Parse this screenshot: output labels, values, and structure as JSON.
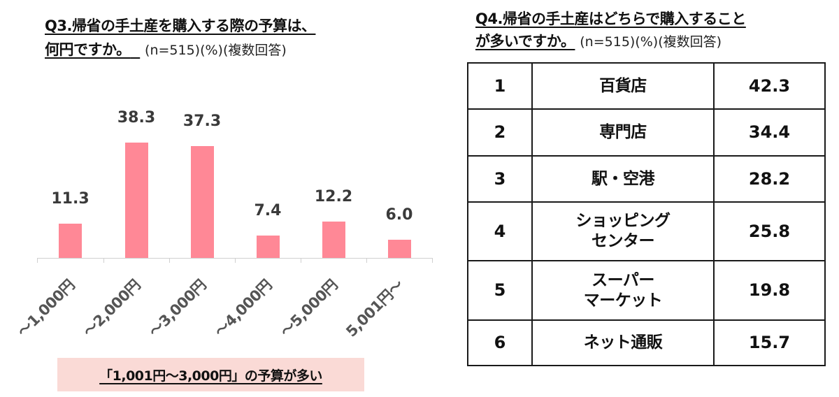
{
  "q3": {
    "title_line1": "Q3.帰省の手土産を購入する際の予算は、",
    "title_line2": "何円ですか。",
    "meta": "(n=515)(%)(複数回答)",
    "highlight": "「1,001円〜3,000円」の予算が多い"
  },
  "q4": {
    "title_line1": "Q4.帰省の手土産はどちらで購入すること",
    "title_line2": "が多いですか。",
    "meta": "(n=515)(%)(複数回答)",
    "rows": [
      {
        "rank": "1",
        "name_lines": [
          "百貨店"
        ],
        "value": "42.3"
      },
      {
        "rank": "2",
        "name_lines": [
          "専門店"
        ],
        "value": "34.4"
      },
      {
        "rank": "3",
        "name_lines": [
          "駅・空港"
        ],
        "value": "28.2"
      },
      {
        "rank": "4",
        "name_lines": [
          "ショッピング",
          "センター"
        ],
        "value": "25.8"
      },
      {
        "rank": "5",
        "name_lines": [
          "スーパー",
          "マーケット"
        ],
        "value": "19.8"
      },
      {
        "rank": "6",
        "name_lines": [
          "ネット通販"
        ],
        "value": "15.7"
      }
    ]
  },
  "colors": {
    "bar": "#ff8896",
    "highlight_bg": "#fadad6",
    "value_label": "#3a3a3a",
    "axis_label": "#555555",
    "table_border": "#1a1a1a"
  },
  "chart_data": [
    {
      "type": "bar",
      "title": "Q3.帰省の手土産を購入する際の予算は、何円ですか。(n=515)(%)(複数回答)",
      "categories": [
        "〜1,000円",
        "〜2,000円",
        "〜3,000円",
        "〜4,000円",
        "〜5,000円",
        "5,001円〜"
      ],
      "values": [
        11.3,
        38.3,
        37.3,
        7.4,
        12.2,
        6.0
      ],
      "value_labels": [
        "11.3",
        "38.3",
        "37.3",
        "7.4",
        "12.2",
        "6.0"
      ],
      "xlabel": "",
      "ylabel": "",
      "ylim": [
        0,
        45
      ],
      "grid": false,
      "legend": null,
      "annotation": "「1,001円〜3,000円」の予算が多い"
    },
    {
      "type": "table",
      "title": "Q4.帰省の手土産はどちらで購入することが多いですか。(n=515)(%)(複数回答)",
      "columns": [
        "rank",
        "place",
        "percent"
      ],
      "rows": [
        [
          1,
          "百貨店",
          42.3
        ],
        [
          2,
          "専門店",
          34.4
        ],
        [
          3,
          "駅・空港",
          28.2
        ],
        [
          4,
          "ショッピングセンター",
          25.8
        ],
        [
          5,
          "スーパーマーケット",
          19.8
        ],
        [
          6,
          "ネット通販",
          15.7
        ]
      ]
    }
  ]
}
